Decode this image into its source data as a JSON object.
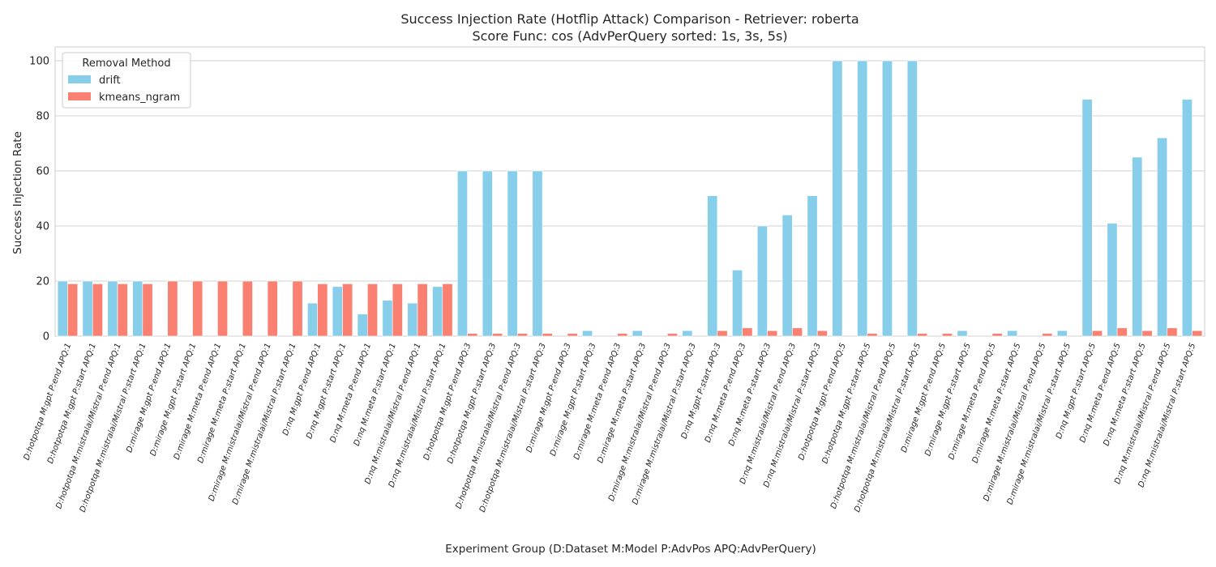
{
  "chart_data": {
    "type": "bar",
    "title": "Success Injection Rate (Hotflip Attack) Comparison - Retriever: roberta",
    "subtitle": "Score Func: cos (AdvPerQuery sorted: 1s, 3s, 5s)",
    "xlabel": "Experiment Group (D:Dataset M:Model P:AdvPos APQ:AdvPerQuery)",
    "ylabel": "Success Injection Rate",
    "ylim": [
      0,
      105
    ],
    "yticks": [
      0,
      20,
      40,
      60,
      80,
      100
    ],
    "grid": true,
    "legend": {
      "title": "Removal Method",
      "position": "top-left"
    },
    "categories": [
      "D:hotpotqa M:gpt P:end APQ:1",
      "D:hotpotqa M:gpt P:start APQ:1",
      "D:hotpotqa M:mistralai/Mistral P:end APQ:1",
      "D:hotpotqa M:mistralai/Mistral P:start APQ:1",
      "D:mirage M:gpt P:end APQ:1",
      "D:mirage M:gpt P:start APQ:1",
      "D:mirage M:meta P:end APQ:1",
      "D:mirage M:meta P:start APQ:1",
      "D:mirage M:mistralai/Mistral P:end APQ:1",
      "D:mirage M:mistralai/Mistral P:start APQ:1",
      "D:nq M:gpt P:end APQ:1",
      "D:nq M:gpt P:start APQ:1",
      "D:nq M:meta P:end APQ:1",
      "D:nq M:meta P:start APQ:1",
      "D:nq M:mistralai/Mistral P:end APQ:1",
      "D:nq M:mistralai/Mistral P:start APQ:1",
      "D:hotpotqa M:gpt P:end APQ:3",
      "D:hotpotqa M:gpt P:start APQ:3",
      "D:hotpotqa M:mistralai/Mistral P:end APQ:3",
      "D:hotpotqa M:mistralai/Mistral P:start APQ:3",
      "D:mirage M:gpt P:end APQ:3",
      "D:mirage M:gpt P:start APQ:3",
      "D:mirage M:meta P:end APQ:3",
      "D:mirage M:meta P:start APQ:3",
      "D:mirage M:mistralai/Mistral P:end APQ:3",
      "D:mirage M:mistralai/Mistral P:start APQ:3",
      "D:nq M:gpt P:start APQ:3",
      "D:nq M:meta P:end APQ:3",
      "D:nq M:meta P:start APQ:3",
      "D:nq M:mistralai/Mistral P:end APQ:3",
      "D:nq M:mistralai/Mistral P:start APQ:3",
      "D:hotpotqa M:gpt P:end APQ:5",
      "D:hotpotqa M:gpt P:start APQ:5",
      "D:hotpotqa M:mistralai/Mistral P:end APQ:5",
      "D:hotpotqa M:mistralai/Mistral P:start APQ:5",
      "D:mirage M:gpt P:end APQ:5",
      "D:mirage M:gpt P:start APQ:5",
      "D:mirage M:meta P:end APQ:5",
      "D:mirage M:meta P:start APQ:5",
      "D:mirage M:mistralai/Mistral P:end APQ:5",
      "D:mirage M:mistralai/Mistral P:start APQ:5",
      "D:nq M:gpt P:start APQ:5",
      "D:nq M:meta P:end APQ:5",
      "D:nq M:meta P:start APQ:5",
      "D:nq M:mistralai/Mistral P:end APQ:5",
      "D:nq M:mistralai/Mistral P:start APQ:5"
    ],
    "series": [
      {
        "name": "drift",
        "color": "#87ceeb",
        "values": [
          20,
          20,
          20,
          20,
          0,
          0,
          0,
          0,
          0,
          0,
          12,
          18,
          8,
          13,
          12,
          18,
          60,
          60,
          60,
          60,
          0,
          2,
          0,
          2,
          0,
          2,
          51,
          24,
          40,
          44,
          51,
          100,
          100,
          100,
          100,
          0,
          2,
          0,
          2,
          0,
          2,
          86,
          41,
          65,
          72,
          86
        ]
      },
      {
        "name": "kmeans_ngram",
        "color": "#fa8072",
        "values": [
          19,
          19,
          19,
          19,
          20,
          20,
          20,
          20,
          20,
          20,
          19,
          19,
          19,
          19,
          19,
          19,
          1,
          1,
          1,
          1,
          1,
          0,
          1,
          0,
          1,
          0,
          2,
          3,
          2,
          3,
          2,
          0,
          1,
          0,
          1,
          1,
          0,
          1,
          0,
          1,
          0,
          2,
          3,
          2,
          3,
          2
        ]
      }
    ]
  }
}
